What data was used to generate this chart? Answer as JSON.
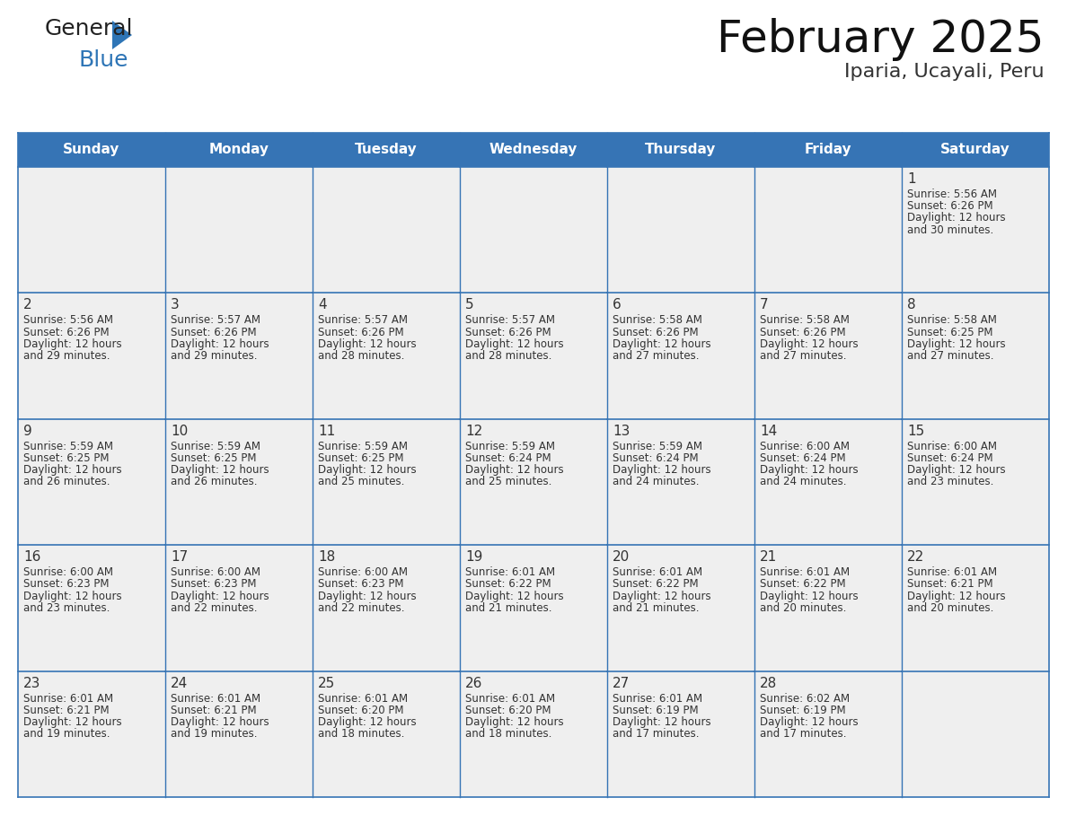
{
  "title": "February 2025",
  "subtitle": "Iparia, Ucayali, Peru",
  "header_bg": "#3674B5",
  "header_text": "#FFFFFF",
  "cell_bg": "#EFEFEF",
  "border_color": "#3674B5",
  "text_color": "#333333",
  "day_names": [
    "Sunday",
    "Monday",
    "Tuesday",
    "Wednesday",
    "Thursday",
    "Friday",
    "Saturday"
  ],
  "weeks": [
    [
      null,
      null,
      null,
      null,
      null,
      null,
      1
    ],
    [
      2,
      3,
      4,
      5,
      6,
      7,
      8
    ],
    [
      9,
      10,
      11,
      12,
      13,
      14,
      15
    ],
    [
      16,
      17,
      18,
      19,
      20,
      21,
      22
    ],
    [
      23,
      24,
      25,
      26,
      27,
      28,
      null
    ]
  ],
  "day_data": {
    "1": {
      "sunrise": "5:56 AM",
      "sunset": "6:26 PM",
      "daylight_hours": 12,
      "daylight_minutes": 30
    },
    "2": {
      "sunrise": "5:56 AM",
      "sunset": "6:26 PM",
      "daylight_hours": 12,
      "daylight_minutes": 29
    },
    "3": {
      "sunrise": "5:57 AM",
      "sunset": "6:26 PM",
      "daylight_hours": 12,
      "daylight_minutes": 29
    },
    "4": {
      "sunrise": "5:57 AM",
      "sunset": "6:26 PM",
      "daylight_hours": 12,
      "daylight_minutes": 28
    },
    "5": {
      "sunrise": "5:57 AM",
      "sunset": "6:26 PM",
      "daylight_hours": 12,
      "daylight_minutes": 28
    },
    "6": {
      "sunrise": "5:58 AM",
      "sunset": "6:26 PM",
      "daylight_hours": 12,
      "daylight_minutes": 27
    },
    "7": {
      "sunrise": "5:58 AM",
      "sunset": "6:26 PM",
      "daylight_hours": 12,
      "daylight_minutes": 27
    },
    "8": {
      "sunrise": "5:58 AM",
      "sunset": "6:25 PM",
      "daylight_hours": 12,
      "daylight_minutes": 27
    },
    "9": {
      "sunrise": "5:59 AM",
      "sunset": "6:25 PM",
      "daylight_hours": 12,
      "daylight_minutes": 26
    },
    "10": {
      "sunrise": "5:59 AM",
      "sunset": "6:25 PM",
      "daylight_hours": 12,
      "daylight_minutes": 26
    },
    "11": {
      "sunrise": "5:59 AM",
      "sunset": "6:25 PM",
      "daylight_hours": 12,
      "daylight_minutes": 25
    },
    "12": {
      "sunrise": "5:59 AM",
      "sunset": "6:24 PM",
      "daylight_hours": 12,
      "daylight_minutes": 25
    },
    "13": {
      "sunrise": "5:59 AM",
      "sunset": "6:24 PM",
      "daylight_hours": 12,
      "daylight_minutes": 24
    },
    "14": {
      "sunrise": "6:00 AM",
      "sunset": "6:24 PM",
      "daylight_hours": 12,
      "daylight_minutes": 24
    },
    "15": {
      "sunrise": "6:00 AM",
      "sunset": "6:24 PM",
      "daylight_hours": 12,
      "daylight_minutes": 23
    },
    "16": {
      "sunrise": "6:00 AM",
      "sunset": "6:23 PM",
      "daylight_hours": 12,
      "daylight_minutes": 23
    },
    "17": {
      "sunrise": "6:00 AM",
      "sunset": "6:23 PM",
      "daylight_hours": 12,
      "daylight_minutes": 22
    },
    "18": {
      "sunrise": "6:00 AM",
      "sunset": "6:23 PM",
      "daylight_hours": 12,
      "daylight_minutes": 22
    },
    "19": {
      "sunrise": "6:01 AM",
      "sunset": "6:22 PM",
      "daylight_hours": 12,
      "daylight_minutes": 21
    },
    "20": {
      "sunrise": "6:01 AM",
      "sunset": "6:22 PM",
      "daylight_hours": 12,
      "daylight_minutes": 21
    },
    "21": {
      "sunrise": "6:01 AM",
      "sunset": "6:22 PM",
      "daylight_hours": 12,
      "daylight_minutes": 20
    },
    "22": {
      "sunrise": "6:01 AM",
      "sunset": "6:21 PM",
      "daylight_hours": 12,
      "daylight_minutes": 20
    },
    "23": {
      "sunrise": "6:01 AM",
      "sunset": "6:21 PM",
      "daylight_hours": 12,
      "daylight_minutes": 19
    },
    "24": {
      "sunrise": "6:01 AM",
      "sunset": "6:21 PM",
      "daylight_hours": 12,
      "daylight_minutes": 19
    },
    "25": {
      "sunrise": "6:01 AM",
      "sunset": "6:20 PM",
      "daylight_hours": 12,
      "daylight_minutes": 18
    },
    "26": {
      "sunrise": "6:01 AM",
      "sunset": "6:20 PM",
      "daylight_hours": 12,
      "daylight_minutes": 18
    },
    "27": {
      "sunrise": "6:01 AM",
      "sunset": "6:19 PM",
      "daylight_hours": 12,
      "daylight_minutes": 17
    },
    "28": {
      "sunrise": "6:02 AM",
      "sunset": "6:19 PM",
      "daylight_hours": 12,
      "daylight_minutes": 17
    }
  },
  "logo_general_color": "#222222",
  "logo_blue_color": "#2E75B6",
  "logo_triangle_color": "#2E75B6",
  "title_fontsize": 36,
  "subtitle_fontsize": 16,
  "header_fontsize": 11,
  "day_num_fontsize": 11,
  "info_fontsize": 8.5
}
